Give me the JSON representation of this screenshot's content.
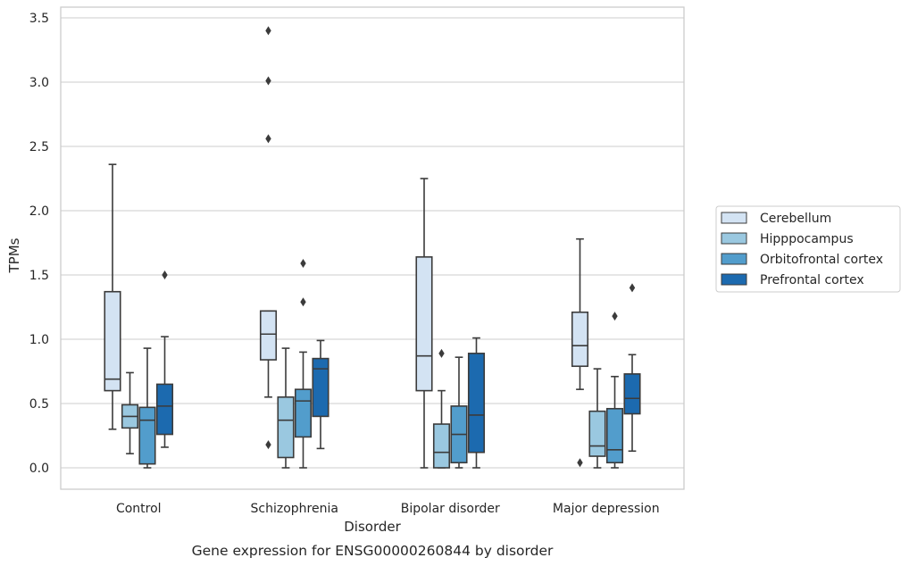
{
  "chart_data": {
    "type": "boxplot",
    "xlabel": "Disorder",
    "ylabel": "TPMs",
    "caption": "Gene expression for ENSG00000260844 by disorder",
    "ylim": [
      -0.16,
      3.58
    ],
    "yticks": [
      "0.0",
      "0.5",
      "1.0",
      "1.5",
      "2.0",
      "2.5",
      "3.0",
      "3.5"
    ],
    "ytick_values": [
      0.0,
      0.5,
      1.0,
      1.5,
      2.0,
      2.5,
      3.0,
      3.5
    ],
    "grid": "horizontal",
    "legend_position": "right",
    "categories": [
      "Control",
      "Schizophrenia",
      "Bipolar disorder",
      "Major depression"
    ],
    "series": [
      {
        "name": "Cerebellum",
        "color": "#d3e3f3",
        "boxes": [
          {
            "whislo": 0.3,
            "q1": 0.6,
            "med": 0.69,
            "q3": 1.37,
            "whishi": 2.36,
            "fliers": []
          },
          {
            "whislo": 0.55,
            "q1": 0.84,
            "med": 1.04,
            "q3": 1.22,
            "whishi": 1.22,
            "fliers": [
              0.18,
              2.56,
              3.01,
              3.4
            ]
          },
          {
            "whislo": 0.0,
            "q1": 0.6,
            "med": 0.87,
            "q3": 1.64,
            "whishi": 2.25,
            "fliers": []
          },
          {
            "whislo": 0.61,
            "q1": 0.79,
            "med": 0.95,
            "q3": 1.21,
            "whishi": 1.78,
            "fliers": [
              0.04
            ]
          }
        ]
      },
      {
        "name": "Hipppocampus",
        "color": "#9ac8e0",
        "boxes": [
          {
            "whislo": 0.11,
            "q1": 0.31,
            "med": 0.4,
            "q3": 0.49,
            "whishi": 0.74,
            "fliers": []
          },
          {
            "whislo": 0.0,
            "q1": 0.08,
            "med": 0.37,
            "q3": 0.55,
            "whishi": 0.93,
            "fliers": []
          },
          {
            "whislo": 0.0,
            "q1": 0.0,
            "med": 0.12,
            "q3": 0.34,
            "whishi": 0.6,
            "fliers": [
              0.89
            ]
          },
          {
            "whislo": 0.0,
            "q1": 0.09,
            "med": 0.17,
            "q3": 0.44,
            "whishi": 0.77,
            "fliers": []
          }
        ]
      },
      {
        "name": "Orbitofrontal cortex",
        "color": "#529dcc",
        "boxes": [
          {
            "whislo": 0.0,
            "q1": 0.03,
            "med": 0.37,
            "q3": 0.47,
            "whishi": 0.93,
            "fliers": []
          },
          {
            "whislo": 0.0,
            "q1": 0.24,
            "med": 0.52,
            "q3": 0.61,
            "whishi": 0.9,
            "fliers": [
              1.29,
              1.59
            ]
          },
          {
            "whislo": 0.0,
            "q1": 0.04,
            "med": 0.26,
            "q3": 0.48,
            "whishi": 0.86,
            "fliers": []
          },
          {
            "whislo": 0.0,
            "q1": 0.04,
            "med": 0.14,
            "q3": 0.46,
            "whishi": 0.71,
            "fliers": [
              1.18
            ]
          }
        ]
      },
      {
        "name": "Prefrontal cortex",
        "color": "#1c6aaf",
        "boxes": [
          {
            "whislo": 0.16,
            "q1": 0.26,
            "med": 0.48,
            "q3": 0.65,
            "whishi": 1.02,
            "fliers": [
              1.5
            ]
          },
          {
            "whislo": 0.15,
            "q1": 0.4,
            "med": 0.77,
            "q3": 0.85,
            "whishi": 0.99,
            "fliers": []
          },
          {
            "whislo": 0.0,
            "q1": 0.12,
            "med": 0.41,
            "q3": 0.89,
            "whishi": 1.01,
            "fliers": []
          },
          {
            "whislo": 0.13,
            "q1": 0.42,
            "med": 0.54,
            "q3": 0.73,
            "whishi": 0.88,
            "fliers": [
              1.4
            ]
          }
        ]
      }
    ]
  },
  "style": {
    "line_color": "#3b3b3b",
    "grid_color": "#cccccc",
    "frame_color": "#cccccc",
    "text_color": "#262626",
    "background": "#ffffff"
  }
}
